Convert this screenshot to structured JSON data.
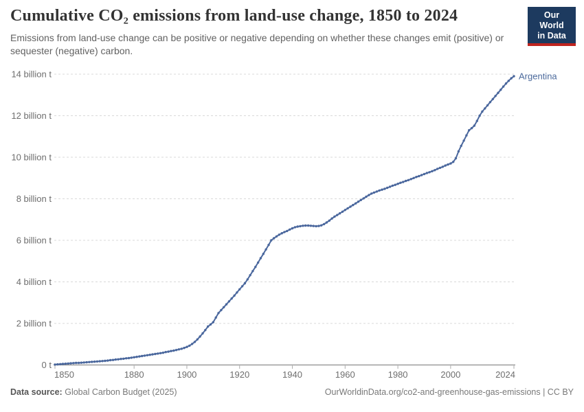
{
  "header": {
    "title": "Cumulative CO₂ emissions from land-use change, 1850 to 2024",
    "subtitle": "Emissions from land-use change can be positive or negative depending on whether these changes emit (positive) or sequester (negative) carbon.",
    "logo": {
      "line1": "Our World",
      "line2": "in Data"
    }
  },
  "footer": {
    "source_label": "Data source:",
    "source_value": "Global Carbon Budget (2025)",
    "credit": "OurWorldinData.org/co2-and-greenhouse-gas-emissions | CC BY"
  },
  "colors": {
    "series_blue": "#4a679d",
    "entity_label_blue": "#4c6a9c",
    "gridline_gray": "#d8d8d8",
    "axis_gray": "#8c8c8c",
    "tick_label_gray": "#6e6e6e",
    "logo_navy": "#1d3a5f",
    "logo_red": "#c0241f"
  },
  "chart_data": {
    "type": "line",
    "title": "Cumulative CO₂ emissions from land-use change, 1850 to 2024",
    "xlabel": "",
    "ylabel": "",
    "unit": "billion t",
    "grid": "horizontal-dashed",
    "legend_position": "end-of-line-label",
    "xlim": [
      1850,
      2024
    ],
    "ylim": [
      0,
      14
    ],
    "x_ticks": [
      1850,
      1880,
      1900,
      1920,
      1940,
      1960,
      1980,
      2000,
      2024
    ],
    "y_ticks": [
      {
        "value": 0,
        "label": "0 t"
      },
      {
        "value": 2,
        "label": "2 billion t"
      },
      {
        "value": 4,
        "label": "4 billion t"
      },
      {
        "value": 6,
        "label": "6 billion t"
      },
      {
        "value": 8,
        "label": "8 billion t"
      },
      {
        "value": 10,
        "label": "10 billion t"
      },
      {
        "value": 12,
        "label": "12 billion t"
      },
      {
        "value": 14,
        "label": "14 billion t"
      }
    ],
    "series": [
      {
        "name": "Argentina",
        "color": "#4a679d",
        "x_start": 1850,
        "x_step": 1,
        "values": [
          0.02,
          0.03,
          0.04,
          0.05,
          0.06,
          0.07,
          0.08,
          0.09,
          0.1,
          0.1,
          0.11,
          0.12,
          0.13,
          0.14,
          0.15,
          0.16,
          0.17,
          0.18,
          0.19,
          0.2,
          0.21,
          0.23,
          0.24,
          0.26,
          0.27,
          0.29,
          0.3,
          0.32,
          0.33,
          0.35,
          0.37,
          0.39,
          0.41,
          0.43,
          0.45,
          0.47,
          0.49,
          0.51,
          0.53,
          0.55,
          0.57,
          0.59,
          0.62,
          0.64,
          0.67,
          0.69,
          0.72,
          0.75,
          0.78,
          0.82,
          0.87,
          0.93,
          1.01,
          1.11,
          1.23,
          1.37,
          1.52,
          1.68,
          1.85,
          1.95,
          2.06,
          2.28,
          2.5,
          2.64,
          2.78,
          2.92,
          3.06,
          3.2,
          3.34,
          3.49,
          3.64,
          3.79,
          3.93,
          4.12,
          4.32,
          4.52,
          4.72,
          4.93,
          5.14,
          5.35,
          5.56,
          5.78,
          6.0,
          6.1,
          6.19,
          6.27,
          6.34,
          6.4,
          6.45,
          6.52,
          6.58,
          6.63,
          6.66,
          6.68,
          6.7,
          6.71,
          6.71,
          6.7,
          6.69,
          6.68,
          6.69,
          6.72,
          6.78,
          6.86,
          6.95,
          7.05,
          7.14,
          7.22,
          7.3,
          7.38,
          7.46,
          7.54,
          7.62,
          7.7,
          7.78,
          7.86,
          7.94,
          8.02,
          8.1,
          8.18,
          8.25,
          8.3,
          8.35,
          8.4,
          8.44,
          8.48,
          8.53,
          8.58,
          8.63,
          8.67,
          8.72,
          8.77,
          8.81,
          8.86,
          8.9,
          8.95,
          9.0,
          9.05,
          9.09,
          9.14,
          9.19,
          9.24,
          9.28,
          9.33,
          9.38,
          9.44,
          9.49,
          9.54,
          9.6,
          9.65,
          9.7,
          9.78,
          9.95,
          10.28,
          10.55,
          10.8,
          11.05,
          11.3,
          11.4,
          11.52,
          11.75,
          12.0,
          12.2,
          12.35,
          12.5,
          12.65,
          12.8,
          12.95,
          13.1,
          13.25,
          13.4,
          13.55,
          13.68,
          13.8,
          13.9
        ]
      }
    ]
  }
}
